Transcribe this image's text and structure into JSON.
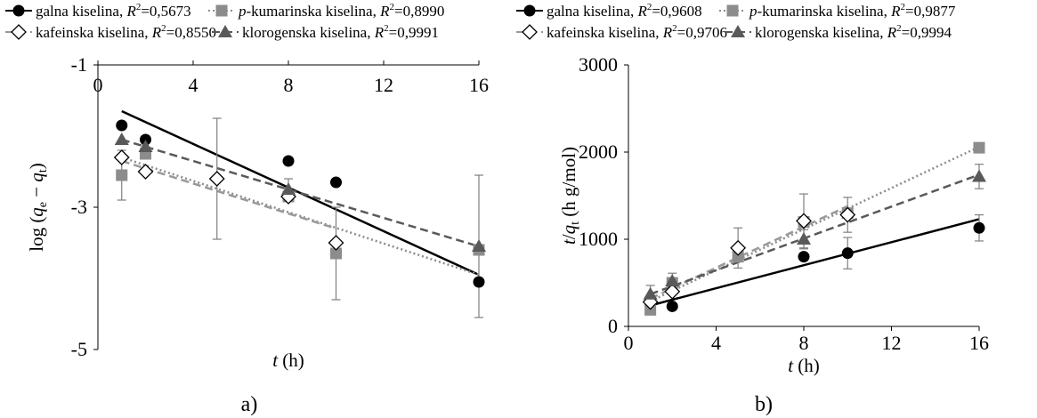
{
  "chart_data": [
    {
      "type": "scatter",
      "panel_label": "a)",
      "xlabel": "t (h)",
      "ylabel": "log (qe − qt)",
      "xlim": [
        0,
        16
      ],
      "ylim": [
        -5,
        -1
      ],
      "xticks": [
        0,
        4,
        8,
        12,
        16
      ],
      "yticks": [
        -1,
        -3,
        -5
      ],
      "x_axis_position": "top",
      "grid": false,
      "legend_position": "top",
      "series": [
        {
          "name": "galna kiselina",
          "r2": "0,5673",
          "marker": "circle-filled",
          "color": "#000000",
          "line_style": "solid",
          "x": [
            1,
            2,
            8,
            10,
            16
          ],
          "y": [
            -1.85,
            -2.05,
            -2.35,
            -2.65,
            -4.05
          ],
          "error": [
            0,
            0,
            0,
            0,
            0
          ],
          "fit": [
            [
              1,
              -1.65
            ],
            [
              16,
              -3.95
            ]
          ]
        },
        {
          "name": "p-kumarinska kiselina",
          "r2": "0,8990",
          "marker": "square-filled",
          "color": "#8c8c8c",
          "line_style": "dotted",
          "x": [
            1,
            2,
            8,
            10,
            16
          ],
          "y": [
            -2.55,
            -2.25,
            -2.85,
            -3.65,
            -3.6
          ],
          "error": [
            0.35,
            0,
            0,
            0.65,
            0
          ],
          "fit": [
            [
              1,
              -2.3
            ],
            [
              16,
              -3.95
            ]
          ]
        },
        {
          "name": "kafeinska kiselina",
          "r2": "0,8550",
          "marker": "diamond-open",
          "color": "#a6a6a6",
          "line_style": "dashed",
          "x": [
            1,
            2,
            5,
            8,
            10
          ],
          "y": [
            -2.3,
            -2.5,
            -2.6,
            -2.85,
            -3.5
          ],
          "error": [
            0,
            0,
            0.85,
            0,
            0
          ],
          "fit": [
            [
              1,
              -2.35
            ],
            [
              10,
              -3.3
            ]
          ]
        },
        {
          "name": "klorogenska kiselina",
          "r2": "0,9991",
          "marker": "triangle-filled",
          "color": "#595959",
          "line_style": "dashed",
          "x": [
            1,
            2,
            8,
            16
          ],
          "y": [
            -2.05,
            -2.15,
            -2.75,
            -3.55
          ],
          "error": [
            0,
            0.15,
            0.15,
            1.0
          ],
          "fit": [
            [
              1,
              -2.05
            ],
            [
              16,
              -3.55
            ]
          ]
        }
      ]
    },
    {
      "type": "scatter",
      "panel_label": "b)",
      "xlabel": "t (h)",
      "ylabel": "t/qt (h g/mol)",
      "xlim": [
        0,
        16
      ],
      "ylim": [
        0,
        3000
      ],
      "xticks": [
        0,
        4,
        8,
        12,
        16
      ],
      "yticks": [
        0,
        1000,
        2000,
        3000
      ],
      "x_axis_position": "bottom",
      "grid": false,
      "legend_position": "top",
      "series": [
        {
          "name": "galna kiselina",
          "r2": "0,9608",
          "marker": "circle-filled",
          "color": "#000000",
          "line_style": "solid",
          "x": [
            1,
            2,
            8,
            10,
            16
          ],
          "y": [
            250,
            230,
            800,
            840,
            1130
          ],
          "error": [
            0,
            0,
            0,
            180,
            150
          ],
          "fit": [
            [
              1,
              240
            ],
            [
              16,
              1230
            ]
          ]
        },
        {
          "name": "p-kumarinska kiselina",
          "r2": "0,9877",
          "marker": "square-filled",
          "color": "#8c8c8c",
          "line_style": "dotted",
          "x": [
            1,
            2,
            5,
            8,
            10,
            16
          ],
          "y": [
            190,
            500,
            800,
            1200,
            1300,
            2050
          ],
          "error": [
            0,
            0,
            0,
            0,
            0,
            0
          ],
          "fit": [
            [
              1,
              290
            ],
            [
              16,
              2060
            ]
          ]
        },
        {
          "name": "kafeinska kiselina",
          "r2": "0,9706",
          "marker": "diamond-open",
          "color": "#a6a6a6",
          "line_style": "dashed",
          "x": [
            1,
            2,
            5,
            8,
            10
          ],
          "y": [
            280,
            400,
            900,
            1210,
            1280
          ],
          "error": [
            0,
            0,
            230,
            310,
            200
          ],
          "fit": [
            [
              1,
              320
            ],
            [
              10,
              1380
            ]
          ]
        },
        {
          "name": "klorogenska kiselina",
          "r2": "0,9994",
          "marker": "triangle-filled",
          "color": "#595959",
          "line_style": "dashed",
          "x": [
            1,
            2,
            8,
            16
          ],
          "y": [
            370,
            520,
            1000,
            1720
          ],
          "error": [
            100,
            90,
            110,
            140
          ],
          "fit": [
            [
              1,
              370
            ],
            [
              16,
              1740
            ]
          ]
        }
      ]
    }
  ]
}
